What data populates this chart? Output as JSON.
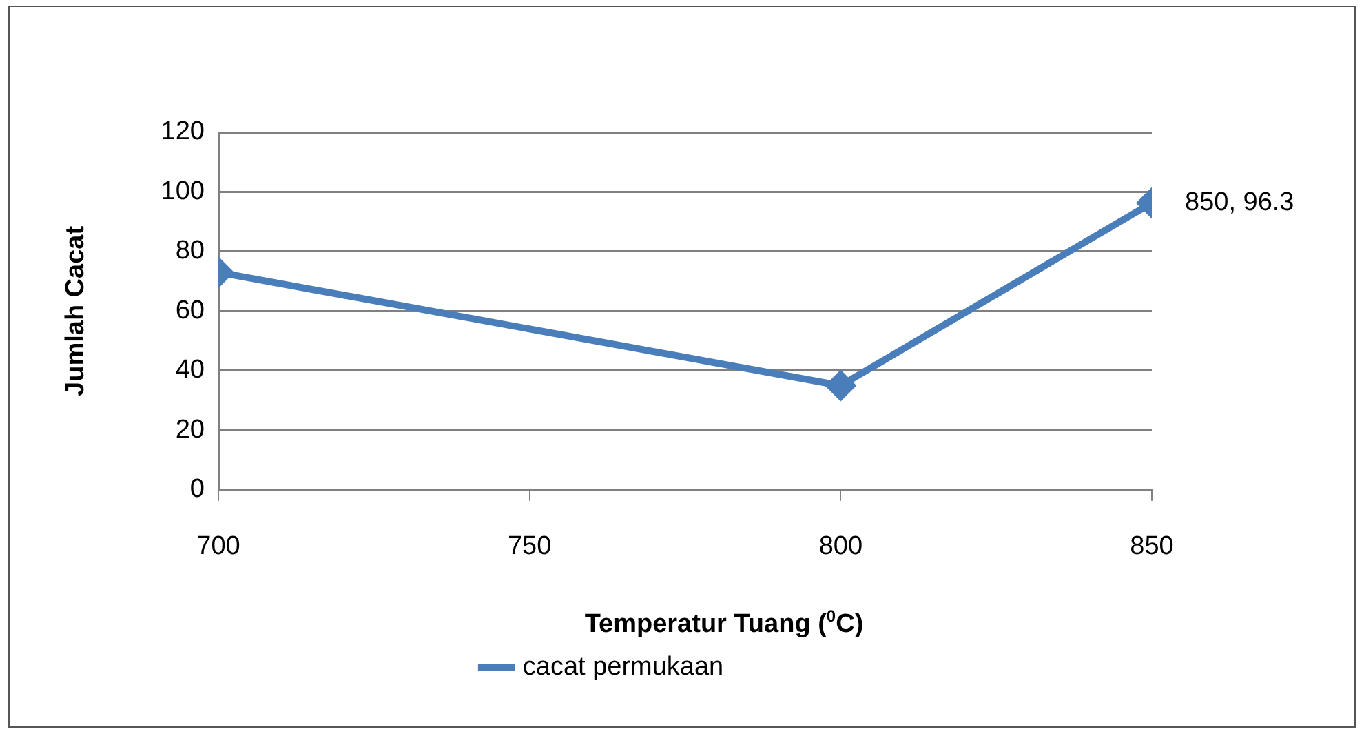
{
  "chart_data": {
    "type": "line",
    "xlabel": "Temperatur  Tuang ($^{0}$C)",
    "ylabel": "Jumlah Cacat",
    "x": [
      700,
      800,
      850
    ],
    "series": [
      {
        "name": "cacat permukaan",
        "color": "#4a7ebb",
        "values": [
          73,
          35,
          96.3
        ],
        "value_labels": [
          null,
          null,
          "850, 96.3"
        ]
      }
    ],
    "xlim": [
      700,
      850
    ],
    "xticks": [
      700,
      750,
      800,
      850
    ],
    "ylim": [
      0,
      120
    ],
    "yticks": [
      0,
      20,
      40,
      60,
      80,
      100,
      120
    ],
    "grid": "y",
    "legend": "bottom",
    "marker": "diamond",
    "line_style": "solid"
  }
}
